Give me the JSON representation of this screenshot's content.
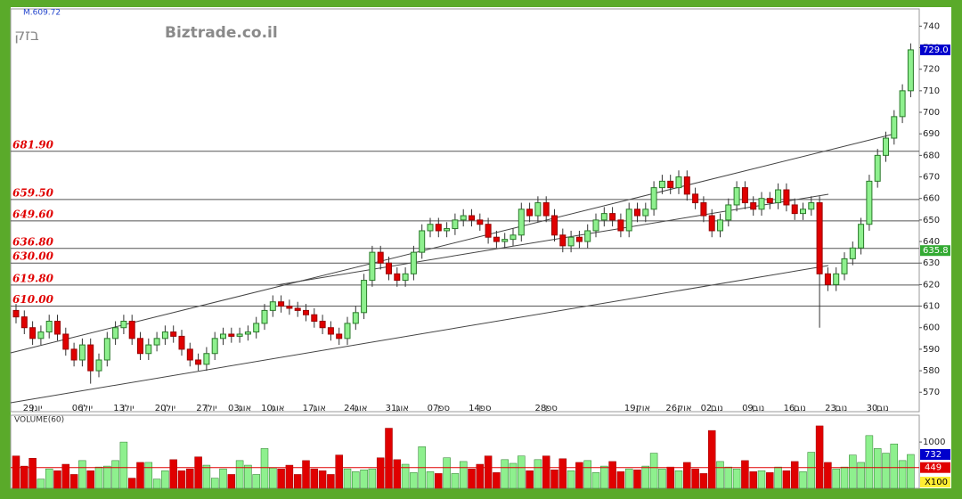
{
  "header": {
    "tag": "M.609.72",
    "symbol": "בזק",
    "site": "Biztrade.co.il"
  },
  "chart_data": [
    {
      "type": "candlestick",
      "categories": [
        null,
        null,
        "29יונ",
        null,
        null,
        null,
        null,
        null,
        "06יול",
        null,
        null,
        null,
        null,
        "13יול",
        null,
        null,
        null,
        null,
        "20יול",
        null,
        null,
        null,
        null,
        "27יול",
        null,
        null,
        null,
        "03אוג",
        null,
        null,
        null,
        "10אוג",
        null,
        null,
        null,
        null,
        "17אוג",
        null,
        null,
        null,
        null,
        "24אוג",
        null,
        null,
        null,
        null,
        "31אוג",
        null,
        null,
        null,
        null,
        "07ספ",
        null,
        null,
        null,
        null,
        "14ספ",
        null,
        null,
        null,
        null,
        null,
        null,
        null,
        "28ספ",
        null,
        null,
        null,
        null,
        null,
        null,
        null,
        null,
        null,
        null,
        "19אוק",
        null,
        null,
        null,
        null,
        "26אוק",
        null,
        null,
        null,
        "02נוב",
        null,
        null,
        null,
        null,
        "09נוב",
        null,
        null,
        null,
        null,
        "16נוב",
        null,
        null,
        null,
        null,
        "23נוב",
        null,
        null,
        null,
        null,
        "30נוב",
        null,
        null,
        null,
        null
      ],
      "open": [
        608,
        605,
        600,
        595,
        598,
        603,
        597,
        590,
        585,
        592,
        580,
        585,
        595,
        600,
        603,
        595,
        588,
        592,
        595,
        598,
        596,
        590,
        585,
        583,
        588,
        595,
        597,
        596,
        597,
        598,
        602,
        608,
        612,
        610,
        609,
        608,
        606,
        603,
        600,
        597,
        595,
        602,
        607,
        622,
        635,
        630,
        625,
        622,
        625,
        635,
        645,
        648,
        645,
        646,
        650,
        652,
        650,
        648,
        642,
        640,
        641,
        643,
        655,
        652,
        658,
        652,
        643,
        638,
        642,
        640,
        645,
        650,
        653,
        650,
        645,
        655,
        652,
        655,
        665,
        668,
        665,
        670,
        662,
        658,
        652,
        645,
        650,
        657,
        665,
        658,
        655,
        660,
        658,
        664,
        657,
        653,
        655,
        658,
        625,
        620,
        625,
        632,
        637,
        648,
        668,
        680,
        688,
        698,
        710
      ],
      "high": [
        611,
        608,
        603,
        601,
        606,
        606,
        600,
        593,
        595,
        595,
        588,
        598,
        603,
        606,
        606,
        598,
        595,
        598,
        601,
        601,
        599,
        593,
        588,
        591,
        598,
        600,
        600,
        600,
        601,
        605,
        611,
        615,
        615,
        613,
        612,
        611,
        609,
        606,
        603,
        600,
        605,
        610,
        625,
        638,
        638,
        633,
        628,
        628,
        638,
        648,
        651,
        651,
        649,
        653,
        655,
        655,
        653,
        651,
        645,
        644,
        646,
        658,
        658,
        661,
        661,
        655,
        646,
        645,
        645,
        648,
        653,
        656,
        656,
        653,
        658,
        658,
        658,
        668,
        671,
        671,
        673,
        673,
        665,
        661,
        655,
        653,
        660,
        668,
        668,
        661,
        663,
        663,
        667,
        667,
        660,
        658,
        661,
        661,
        628,
        628,
        635,
        640,
        651,
        671,
        683,
        691,
        701,
        713,
        732
      ],
      "low": [
        602,
        597,
        592,
        592,
        595,
        594,
        587,
        582,
        582,
        574,
        577,
        582,
        592,
        597,
        592,
        585,
        585,
        589,
        592,
        593,
        587,
        582,
        580,
        580,
        585,
        592,
        593,
        593,
        594,
        595,
        599,
        605,
        607,
        606,
        605,
        603,
        600,
        597,
        594,
        592,
        592,
        599,
        604,
        619,
        627,
        622,
        619,
        619,
        622,
        632,
        642,
        642,
        642,
        643,
        647,
        647,
        645,
        639,
        637,
        637,
        638,
        640,
        649,
        649,
        649,
        640,
        635,
        635,
        637,
        637,
        642,
        647,
        647,
        642,
        642,
        649,
        649,
        652,
        662,
        662,
        662,
        659,
        655,
        649,
        642,
        642,
        647,
        654,
        655,
        652,
        652,
        655,
        655,
        654,
        650,
        650,
        652,
        600,
        617,
        617,
        622,
        629,
        634,
        645,
        665,
        677,
        685,
        695,
        707
      ],
      "close": [
        605,
        600,
        595,
        598,
        603,
        597,
        590,
        585,
        592,
        580,
        585,
        595,
        600,
        603,
        595,
        588,
        592,
        595,
        598,
        596,
        590,
        585,
        583,
        588,
        595,
        597,
        596,
        597,
        598,
        602,
        608,
        612,
        610,
        609,
        608,
        606,
        603,
        600,
        597,
        595,
        602,
        607,
        622,
        635,
        630,
        625,
        622,
        625,
        635,
        645,
        648,
        645,
        646,
        650,
        652,
        650,
        648,
        642,
        640,
        641,
        643,
        655,
        652,
        658,
        652,
        643,
        638,
        642,
        640,
        645,
        650,
        653,
        650,
        645,
        655,
        652,
        655,
        665,
        668,
        665,
        670,
        662,
        658,
        652,
        645,
        650,
        657,
        665,
        658,
        655,
        660,
        658,
        664,
        657,
        653,
        655,
        658,
        625,
        620,
        625,
        632,
        637,
        648,
        668,
        680,
        688,
        698,
        710,
        729
      ],
      "up_color": "#8ef08e",
      "down_color": "#e00000",
      "ylim": [
        561,
        748
      ],
      "yticks": [
        570,
        580,
        590,
        600,
        610,
        620,
        630,
        640,
        650,
        660,
        670,
        680,
        690,
        700,
        710,
        720,
        730,
        740
      ],
      "levels": [
        {
          "value": 681.9,
          "label": "681.90"
        },
        {
          "value": 659.5,
          "label": "659.50"
        },
        {
          "value": 649.6,
          "label": "649.60"
        },
        {
          "value": 636.8,
          "label": "636.80"
        },
        {
          "value": 630,
          "label": "630.00"
        },
        {
          "value": 619.8,
          "label": "619.80"
        },
        {
          "value": 610,
          "label": "610.00"
        }
      ],
      "markers": [
        {
          "value": 729,
          "label": "729.0",
          "color": "#0000cc"
        },
        {
          "value": 635.8,
          "label": "635.8",
          "color": "#33aa33"
        }
      ]
    },
    {
      "type": "volume",
      "title": "VOLUME(60)",
      "values": [
        700,
        480,
        650,
        200,
        420,
        380,
        520,
        300,
        600,
        380,
        460,
        480,
        600,
        1000,
        220,
        560,
        560,
        200,
        380,
        620,
        380,
        420,
        680,
        500,
        220,
        420,
        300,
        600,
        500,
        300,
        860,
        440,
        420,
        500,
        300,
        600,
        420,
        380,
        300,
        720,
        420,
        360,
        400,
        420,
        660,
        1300,
        620,
        520,
        340,
        900,
        360,
        320,
        660,
        320,
        580,
        420,
        520,
        700,
        340,
        620,
        540,
        700,
        380,
        620,
        700,
        400,
        640,
        380,
        560,
        600,
        340,
        480,
        580,
        360,
        420,
        400,
        480,
        760,
        420,
        460,
        380,
        560,
        420,
        320,
        1250,
        580,
        460,
        420,
        600,
        360,
        380,
        340,
        460,
        380,
        580,
        360,
        780,
        1350,
        560,
        420,
        460,
        720,
        560,
        1140,
        860,
        760,
        960,
        600,
        732
      ],
      "average": 449,
      "unit": "X100",
      "ylim": [
        0,
        1580
      ],
      "yticks": [
        1000
      ]
    }
  ]
}
